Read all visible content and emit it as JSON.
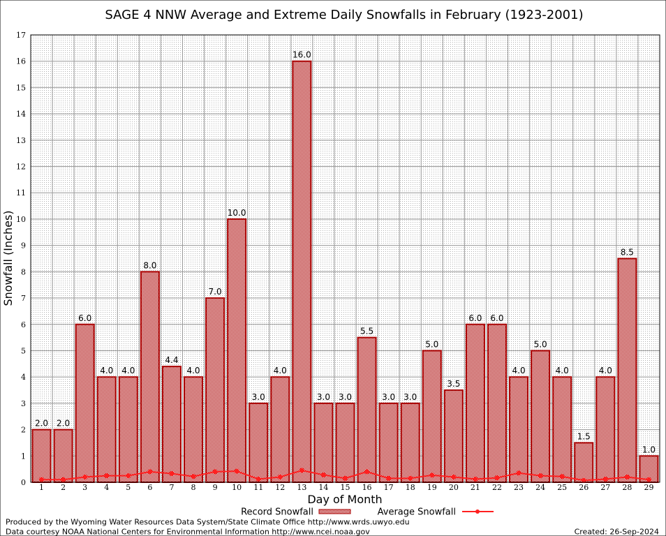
{
  "chart_data": {
    "type": "bar",
    "title": "SAGE 4 NNW Average and Extreme Daily Snowfalls in February (1923-2001)",
    "xlabel": "Day of Month",
    "ylabel": "Snowfall (Inches)",
    "ylim": [
      0,
      17
    ],
    "yticks": [
      "0",
      "1",
      "2",
      "3",
      "4",
      "5",
      "6",
      "7",
      "8",
      "9",
      "10",
      "11",
      "12",
      "13",
      "14",
      "15",
      "16",
      "17"
    ],
    "categories": [
      "1",
      "2",
      "3",
      "4",
      "5",
      "6",
      "7",
      "8",
      "9",
      "10",
      "11",
      "12",
      "13",
      "14",
      "15",
      "16",
      "17",
      "18",
      "19",
      "20",
      "21",
      "22",
      "23",
      "24",
      "25",
      "26",
      "27",
      "28",
      "29"
    ],
    "grid": true,
    "legend_position": "bottom",
    "series": [
      {
        "name": "Record Snowfall",
        "type": "bar",
        "color": "#aa0000",
        "values": [
          2.0,
          2.0,
          6.0,
          4.0,
          4.0,
          8.0,
          4.4,
          4.0,
          7.0,
          10.0,
          3.0,
          4.0,
          16.0,
          3.0,
          3.0,
          5.5,
          3.0,
          3.0,
          5.0,
          3.5,
          6.0,
          6.0,
          4.0,
          5.0,
          4.0,
          1.5,
          4.0,
          8.5,
          1.0
        ],
        "labels": [
          "2.0",
          "2.0",
          "6.0",
          "4.0",
          "4.0",
          "8.0",
          "4.4",
          "4.0",
          "7.0",
          "10.0",
          "3.0",
          "4.0",
          "16.0",
          "3.0",
          "3.0",
          "5.5",
          "3.0",
          "3.0",
          "5.0",
          "3.5",
          "6.0",
          "6.0",
          "4.0",
          "5.0",
          "4.0",
          "1.5",
          "4.0",
          "8.5",
          "1.0"
        ]
      },
      {
        "name": "Average Snowfall",
        "type": "line",
        "color": "#ff2020",
        "values": [
          0.1,
          0.1,
          0.2,
          0.25,
          0.25,
          0.4,
          0.33,
          0.22,
          0.4,
          0.42,
          0.12,
          0.2,
          0.45,
          0.28,
          0.15,
          0.4,
          0.15,
          0.15,
          0.27,
          0.2,
          0.12,
          0.17,
          0.35,
          0.25,
          0.22,
          0.07,
          0.12,
          0.2,
          0.1
        ]
      }
    ]
  },
  "footer": {
    "credit1": "Produced by the Wyoming Water Resources Data System/State Climate Office http://www.wrds.uwyo.edu",
    "credit2": "Data courtesy NOAA National Centers for Environmental Information http://www.ncei.noaa.gov",
    "created": "Created:  26-Sep-2024"
  }
}
